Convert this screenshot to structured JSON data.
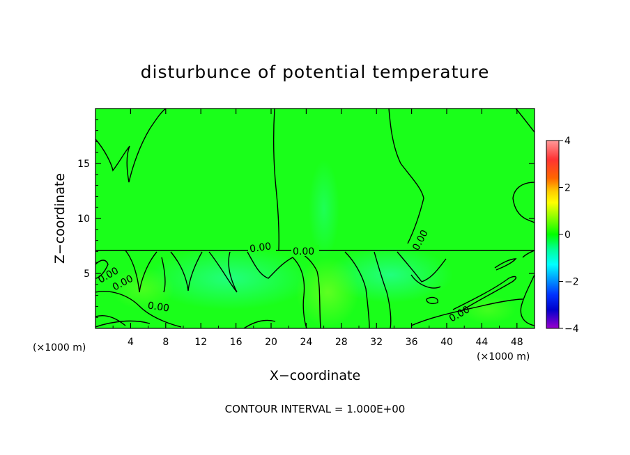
{
  "chart_data": {
    "type": "heatmap",
    "title": "disturbunce of potential temperature",
    "xlabel": "X−coordinate",
    "ylabel": "Z−coordinate",
    "x_unit_left": "(×1000 m)",
    "x_unit_right": "(×1000 m)",
    "xlim": [
      0,
      50
    ],
    "ylim": [
      0,
      20
    ],
    "x_ticks": [
      4,
      8,
      12,
      16,
      20,
      24,
      28,
      32,
      36,
      40,
      44,
      48
    ],
    "y_ticks": [
      5,
      10,
      15
    ],
    "colorbar": {
      "range": [
        -4,
        4
      ],
      "ticks": [
        "4",
        "2",
        "0",
        "−2",
        "−4"
      ],
      "colors": [
        "#ff9999",
        "#ff3333",
        "#ff6600",
        "#ffcc00",
        "#ffff00",
        "#99ff00",
        "#00ff00",
        "#00ff99",
        "#00ffff",
        "#0099ff",
        "#0033ff",
        "#0000cc",
        "#6600cc",
        "#9900cc"
      ]
    },
    "field_base_value": 0.2,
    "contour_labels": [
      "0.00",
      "0.00",
      "0.00",
      "0.00",
      "0.00",
      "0.00",
      "0.00"
    ],
    "contour_interval_text": "CONTOUR INTERVAL = 1.000E+00"
  }
}
